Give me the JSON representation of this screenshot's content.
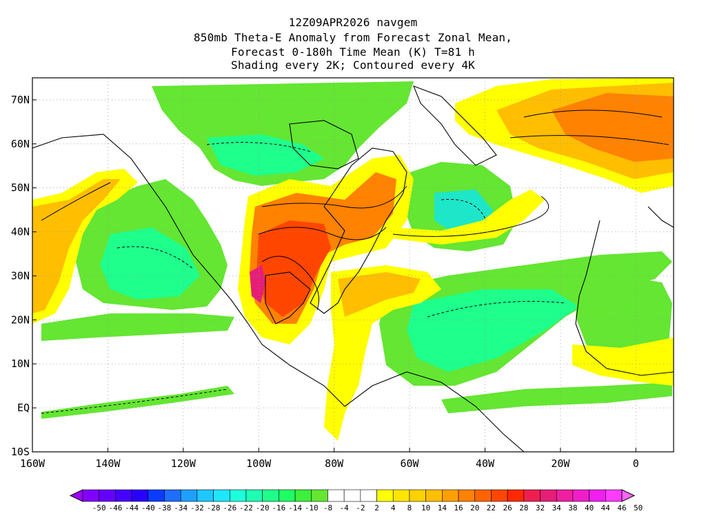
{
  "title": {
    "line1": "12Z09APR2026 navgem",
    "line2": "850mb Theta-E Anomaly from Forecast Zonal Mean,",
    "line3": "Forecast 0-180h Time Mean (K) T=81 h",
    "line4": "Shading every 2K; Contoured every 4K"
  },
  "axes": {
    "lon_labels": [
      "160W",
      "140W",
      "120W",
      "100W",
      "80W",
      "60W",
      "40W",
      "20W",
      "0"
    ],
    "lon_values": [
      -160,
      -140,
      -120,
      -100,
      -80,
      -60,
      -40,
      -20,
      0
    ],
    "lat_labels": [
      "10S",
      "EQ",
      "10N",
      "20N",
      "30N",
      "40N",
      "50N",
      "60N",
      "70N"
    ],
    "lat_values": [
      -10,
      0,
      10,
      20,
      30,
      40,
      50,
      60,
      70
    ],
    "lon_range": [
      -160,
      10
    ],
    "lat_range": [
      -10,
      75
    ],
    "grid": true
  },
  "colorbar": {
    "labels": [
      "-50",
      "-46",
      "-44",
      "-40",
      "-38",
      "-34",
      "-32",
      "-28",
      "-26",
      "-22",
      "-20",
      "-16",
      "-14",
      "-10",
      "-8",
      "-4",
      "-2",
      "2",
      "4",
      "8",
      "10",
      "14",
      "16",
      "20",
      "22",
      "26",
      "28",
      "32",
      "34",
      "38",
      "40",
      "44",
      "46",
      "50"
    ],
    "colors": [
      "#a000ff",
      "#8200ff",
      "#6400ff",
      "#4600ff",
      "#2800ff",
      "#0a3cff",
      "#1e6eff",
      "#1ea0ff",
      "#1ec8ff",
      "#1ee6ff",
      "#1effdc",
      "#1effb4",
      "#1eff8c",
      "#1eff64",
      "#3cf03c",
      "#64e632",
      "#ffffff",
      "#ffffff",
      "#ffffff",
      "#ffff00",
      "#ffe600",
      "#ffd200",
      "#ffbe00",
      "#ffa000",
      "#ff8200",
      "#ff6400",
      "#ff4600",
      "#ff2800",
      "#f01e50",
      "#e61e78",
      "#f01ea0",
      "#f01ec8",
      "#f01ef0",
      "#ff3cff",
      "#ff64ff"
    ]
  },
  "field_colors": {
    "neg_light": "#64e632",
    "neg_mid": "#1eff8c",
    "neg_deep": "#1ee6c8",
    "pos_light": "#ffff00",
    "pos_mid": "#ffbe00",
    "pos_strong": "#ff8200",
    "pos_deep": "#ff4600",
    "pos_extreme": "#e61e78"
  }
}
